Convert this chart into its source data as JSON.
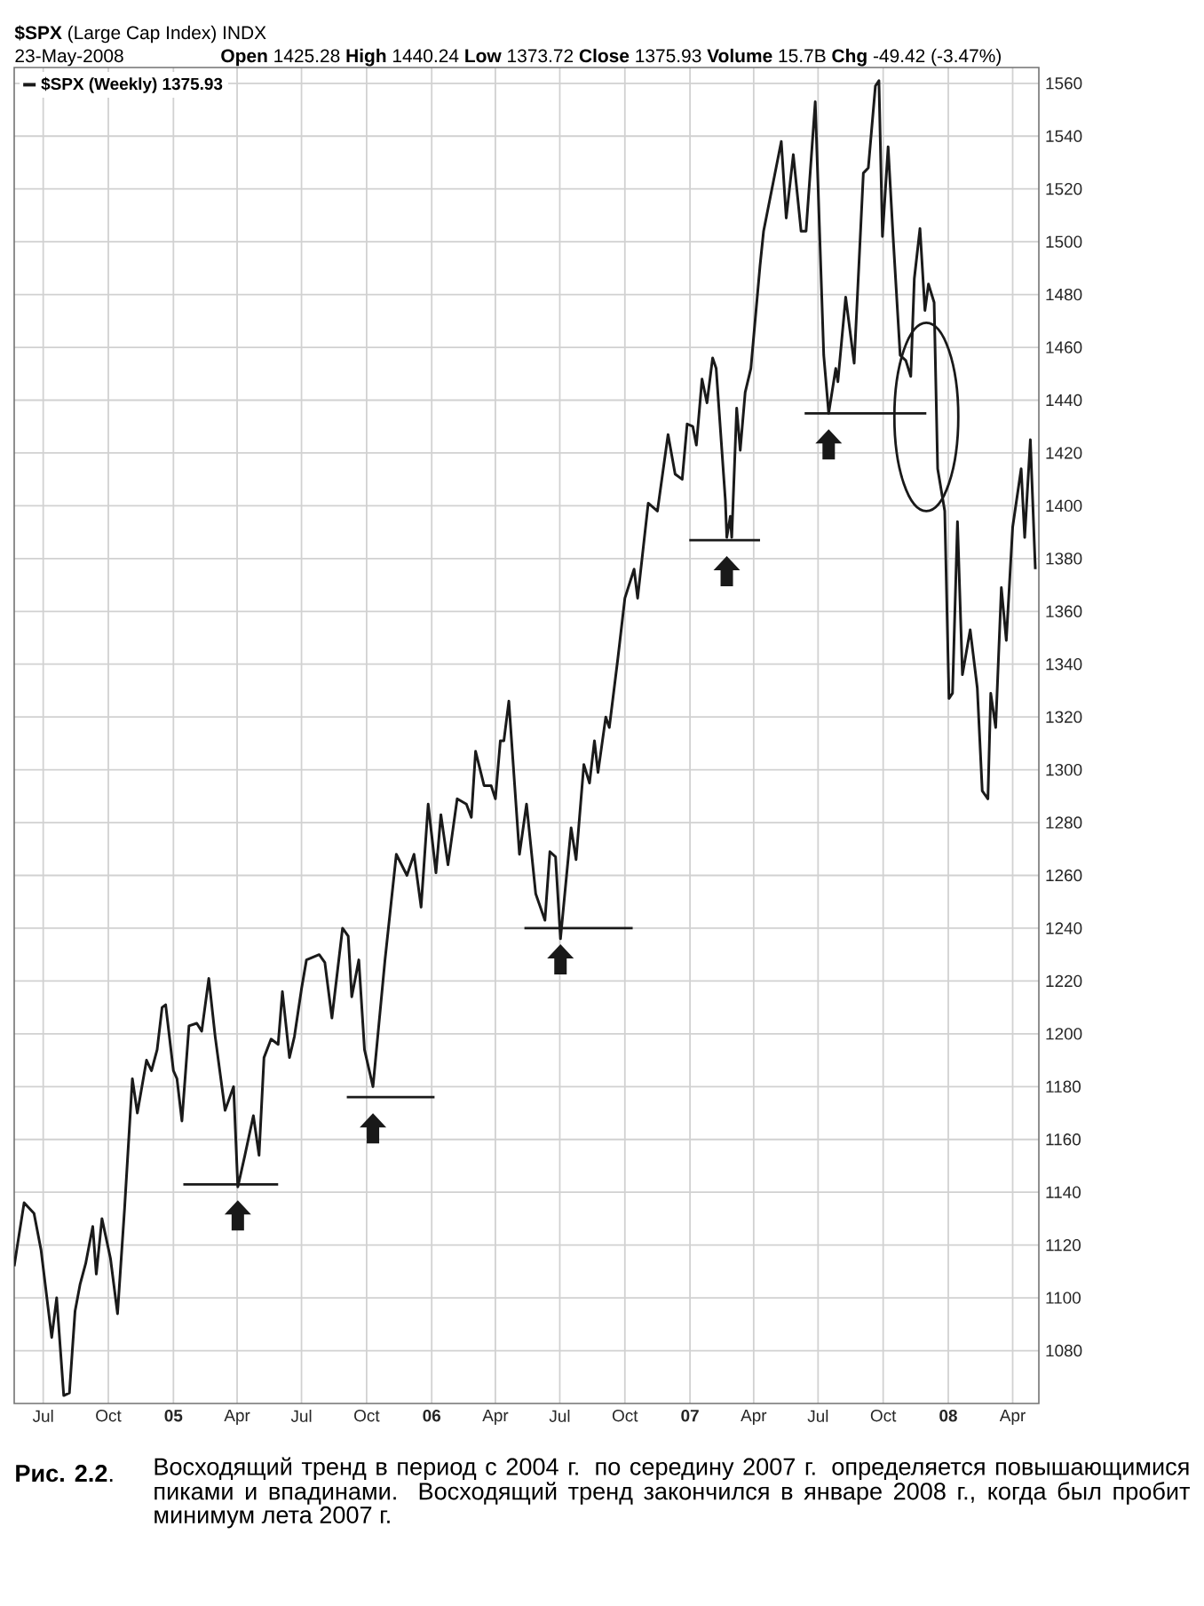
{
  "chart_data": {
    "type": "line",
    "title": "**$SPX** (Large Cap Index) INDX",
    "subtitle": "23-May-2008",
    "annotations": [
      "**Open** 1425.28 **High** 1440.24 **Low** 1373.72 **Close** 1375.93 **Volume** 15.7B **Chg** -49.42 (-3.47%)",
      "**Рис. 2.2**.",
      "Восходящий тренд в период с 2004 г. по середину 2007 г. определяется повышающимися пиками и впадинами. Восходящий тренд закончился в январе 2008 г., когда был пробит минимум лета 2007 г."
    ],
    "xlim": [
      "2004-05-21",
      "2008-05-08"
    ],
    "ylim": [
      1060,
      1566
    ],
    "xticks": [
      {
        "value": "2004-07-01",
        "label": "Jul"
      },
      {
        "value": "2004-10-01",
        "label": "Oct"
      },
      {
        "value": "2005-01-01",
        "label": "05"
      },
      {
        "value": "2005-04-01",
        "label": "Apr"
      },
      {
        "value": "2005-07-01",
        "label": "Jul"
      },
      {
        "value": "2005-10-01",
        "label": "Oct"
      },
      {
        "value": "2006-01-01",
        "label": "06"
      },
      {
        "value": "2006-04-01",
        "label": "Apr"
      },
      {
        "value": "2006-07-01",
        "label": "Jul"
      },
      {
        "value": "2006-10-01",
        "label": "Oct"
      },
      {
        "value": "2007-01-01",
        "label": "07"
      },
      {
        "value": "2007-04-01",
        "label": "Apr"
      },
      {
        "value": "2007-07-01",
        "label": "Jul"
      },
      {
        "value": "2007-10-01",
        "label": "Oct"
      },
      {
        "value": "2008-01-01",
        "label": "08"
      },
      {
        "value": "2008-04-01",
        "label": "Apr"
      }
    ],
    "yticks": [
      1080,
      1100,
      1120,
      1140,
      1160,
      1180,
      1200,
      1220,
      1240,
      1260,
      1280,
      1300,
      1320,
      1340,
      1360,
      1380,
      1400,
      1420,
      1440,
      1460,
      1480,
      1500,
      1520,
      1540,
      1560
    ],
    "grid": true,
    "legend": "top left",
    "series": [
      {
        "name": "$SPX (Weekly) 1375.93",
        "color": "#1a1a1a",
        "x": [
          "2004-05-21",
          "2004-05-25",
          "2004-06-04",
          "2004-06-18",
          "2004-06-28",
          "2004-07-13",
          "2004-07-20",
          "2004-07-30",
          "2004-08-07",
          "2004-08-15",
          "2004-08-22",
          "2004-08-30",
          "2004-09-09",
          "2004-09-14",
          "2004-09-22",
          "2004-10-04",
          "2004-10-14",
          "2004-10-24",
          "2004-11-04",
          "2004-11-11",
          "2004-11-24",
          "2004-12-01",
          "2004-12-09",
          "2004-12-16",
          "2004-12-21",
          "2005-01-01",
          "2005-01-06",
          "2005-01-13",
          "2005-01-23",
          "2005-02-03",
          "2005-02-10",
          "2005-02-20",
          "2005-03-01",
          "2005-03-15",
          "2005-03-27",
          "2005-04-02",
          "2005-04-12",
          "2005-04-24",
          "2005-05-02",
          "2005-05-09",
          "2005-05-19",
          "2005-05-29",
          "2005-06-04",
          "2005-06-14",
          "2005-06-21",
          "2005-07-01",
          "2005-07-08",
          "2005-07-26",
          "2005-08-03",
          "2005-08-13",
          "2005-08-28",
          "2005-09-05",
          "2005-09-10",
          "2005-09-20",
          "2005-09-28",
          "2005-10-10",
          "2005-10-27",
          "2005-11-12",
          "2005-11-27",
          "2005-12-07",
          "2005-12-17",
          "2005-12-27",
          "2006-01-07",
          "2006-01-14",
          "2006-01-24",
          "2006-02-06",
          "2006-02-19",
          "2006-02-26",
          "2006-03-04",
          "2006-03-16",
          "2006-03-26",
          "2006-04-01",
          "2006-04-08",
          "2006-04-13",
          "2006-04-20",
          "2006-05-05",
          "2006-05-15",
          "2006-05-28",
          "2006-06-10",
          "2006-06-17",
          "2006-06-25",
          "2006-07-02",
          "2006-07-17",
          "2006-07-24",
          "2006-08-04",
          "2006-08-12",
          "2006-08-19",
          "2006-08-24",
          "2006-09-04",
          "2006-09-09",
          "2006-09-21",
          "2006-10-01",
          "2006-10-14",
          "2006-10-19",
          "2006-11-03",
          "2006-11-16",
          "2006-12-01",
          "2006-12-11",
          "2006-12-21",
          "2006-12-28",
          "2007-01-05",
          "2007-01-10",
          "2007-01-18",
          "2007-01-25",
          "2007-02-02",
          "2007-02-07",
          "2007-02-20",
          "2007-02-22",
          "2007-02-27",
          "2007-03-01",
          "2007-03-08",
          "2007-03-13",
          "2007-03-20",
          "2007-03-28",
          "2007-04-10",
          "2007-04-15",
          "2007-05-10",
          "2007-05-17",
          "2007-05-27",
          "2007-06-07",
          "2007-06-14",
          "2007-06-27",
          "2007-07-09",
          "2007-07-16",
          "2007-07-26",
          "2007-07-29",
          "2007-08-09",
          "2007-08-21",
          "2007-09-03",
          "2007-09-10",
          "2007-09-20",
          "2007-09-25",
          "2007-09-30",
          "2007-10-08",
          "2007-10-15",
          "2007-10-25",
          "2007-11-02",
          "2007-11-09",
          "2007-11-14",
          "2007-11-22",
          "2007-11-29",
          "2007-12-04",
          "2007-12-12",
          "2007-12-17",
          "2007-12-27",
          "2008-01-02",
          "2008-01-07",
          "2008-01-14",
          "2008-01-21",
          "2008-02-01",
          "2008-02-11",
          "2008-02-18",
          "2008-02-26",
          "2008-03-01",
          "2008-03-08",
          "2008-03-16",
          "2008-03-23",
          "2008-04-01",
          "2008-04-13",
          "2008-04-18",
          "2008-04-26",
          "2008-05-03"
        ],
        "values": [
          1112,
          1119,
          1136,
          1132,
          1118,
          1085,
          1100,
          1063,
          1064,
          1095,
          1105,
          1113,
          1127,
          1109,
          1130,
          1115,
          1094,
          1134,
          1183,
          1170,
          1190,
          1186,
          1194,
          1210,
          1211,
          1186,
          1183,
          1167,
          1203,
          1204,
          1201,
          1221,
          1199,
          1171,
          1180,
          1142,
          1154,
          1169,
          1154,
          1191,
          1198,
          1196,
          1216,
          1191,
          1199,
          1217,
          1228,
          1230,
          1227,
          1206,
          1240,
          1237,
          1214,
          1228,
          1194,
          1180,
          1228,
          1268,
          1260,
          1268,
          1248,
          1287,
          1261,
          1283,
          1264,
          1289,
          1287,
          1282,
          1307,
          1294,
          1294,
          1289,
          1311,
          1311,
          1326,
          1268,
          1287,
          1253,
          1243,
          1269,
          1267,
          1236,
          1278,
          1266,
          1302,
          1295,
          1311,
          1299,
          1320,
          1316,
          1342,
          1365,
          1376,
          1365,
          1401,
          1398,
          1427,
          1412,
          1410,
          1431,
          1430,
          1423,
          1448,
          1439,
          1456,
          1452,
          1402,
          1388,
          1396,
          1388,
          1437,
          1421,
          1443,
          1452,
          1491,
          1504,
          1538,
          1509,
          1533,
          1504,
          1504,
          1553,
          1457,
          1435,
          1452,
          1447,
          1479,
          1454,
          1526,
          1528,
          1559,
          1561,
          1502,
          1536,
          1502,
          1457,
          1455,
          1449,
          1486,
          1505,
          1474,
          1484,
          1477,
          1414,
          1398,
          1327,
          1329,
          1394,
          1336,
          1353,
          1331,
          1292,
          1289,
          1329,
          1316,
          1369,
          1349,
          1392,
          1414,
          1388,
          1425,
          1376
        ]
      },
      {
        "type": "line",
        "color": "#1a1a1a",
        "x": [
          "2005-01-15",
          "2005-05-29"
        ],
        "values": [
          1143,
          1143
        ]
      },
      {
        "type": "line",
        "color": "#1a1a1a",
        "x": [
          "2005-09-03",
          "2006-01-05"
        ],
        "values": [
          1176,
          1176
        ]
      },
      {
        "type": "line",
        "color": "#1a1a1a",
        "x": [
          "2006-05-12",
          "2006-10-12"
        ],
        "values": [
          1240,
          1240
        ]
      },
      {
        "type": "line",
        "color": "#1a1a1a",
        "x": [
          "2006-12-31",
          "2007-04-10"
        ],
        "values": [
          1387,
          1387
        ]
      },
      {
        "type": "line",
        "color": "#1a1a1a",
        "x": [
          "2007-06-12",
          "2007-12-01"
        ],
        "values": [
          1435,
          1435
        ]
      }
    ]
  }
}
